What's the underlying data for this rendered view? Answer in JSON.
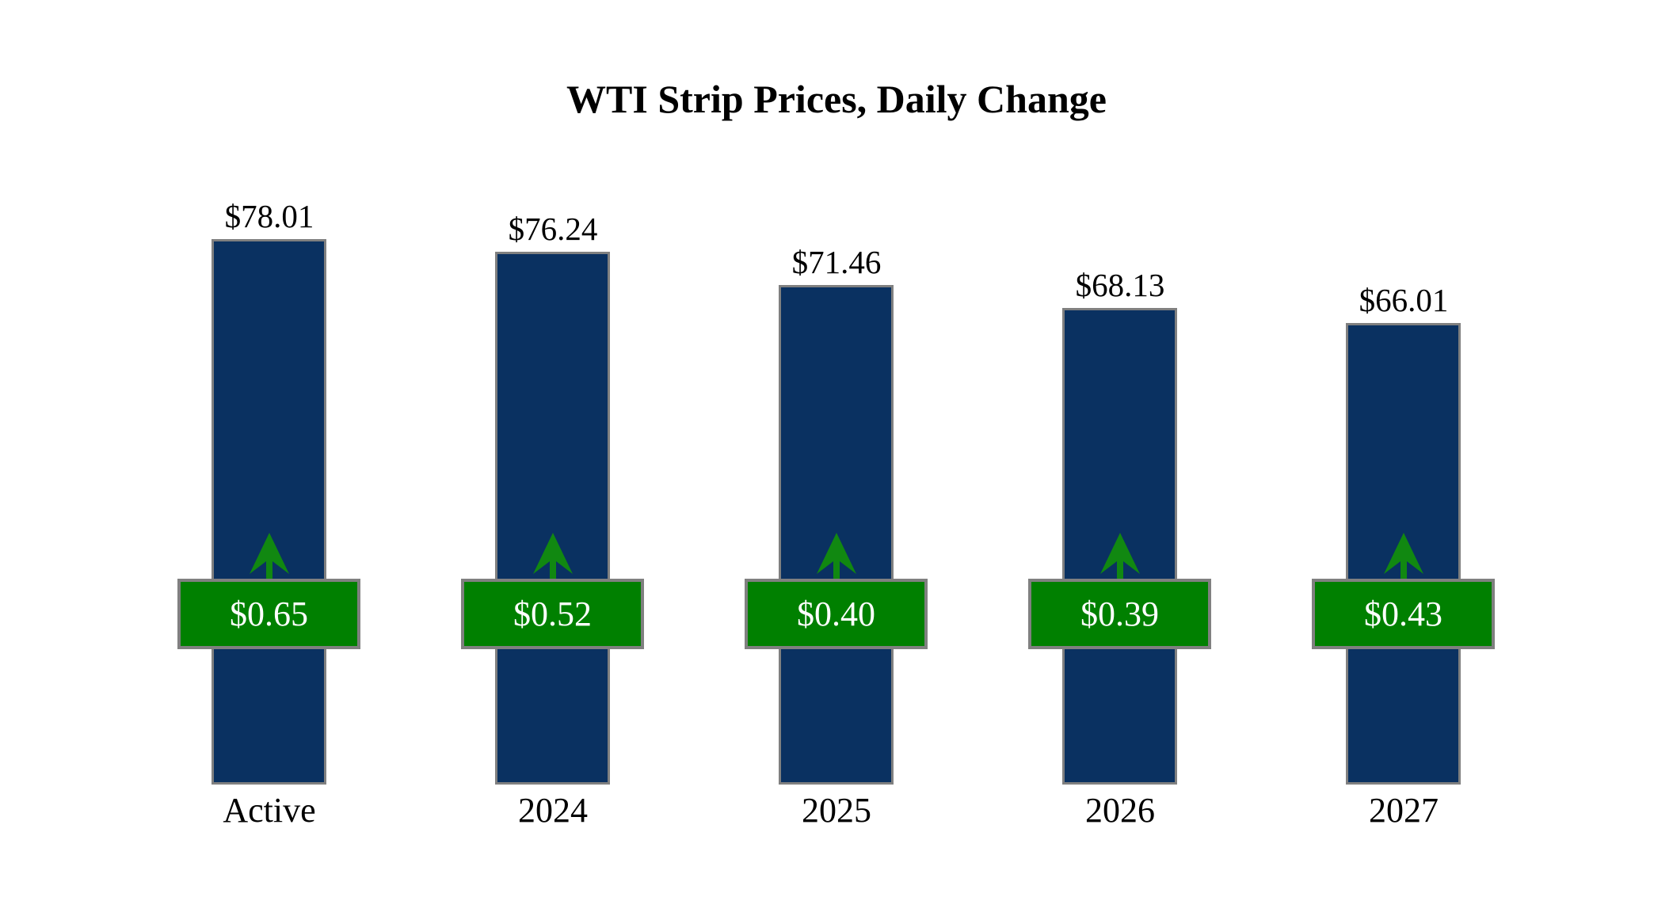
{
  "title": "WTI Strip Prices, Daily Change",
  "colors": {
    "background": "#FFFFFF",
    "bar_fill": "#0A3161",
    "bar_border": "#808080",
    "badge_fill": "#008000",
    "badge_border": "#808080",
    "badge_text": "#FFFFFF",
    "arrow_green": "#118811",
    "text": "#000000"
  },
  "chart_data": {
    "type": "bar",
    "title": "WTI Strip Prices, Daily Change",
    "categories": [
      "Active",
      "2024",
      "2025",
      "2026",
      "2027"
    ],
    "series": [
      {
        "name": "Strip Price",
        "values": [
          78.01,
          76.24,
          71.46,
          68.13,
          66.01
        ],
        "labels": [
          "$78.01",
          "$76.24",
          "$71.46",
          "$68.13",
          "$66.01"
        ]
      },
      {
        "name": "Daily Change",
        "direction": "up",
        "values": [
          0.65,
          0.52,
          0.4,
          0.39,
          0.43
        ],
        "labels": [
          "$0.65",
          "$0.52",
          "$0.40",
          "$0.39",
          "$0.43"
        ]
      }
    ],
    "xlabel": "",
    "ylabel": "",
    "ylim": [
      0,
      78.01
    ],
    "grid": false,
    "axes_visible": false,
    "legend_position": "none",
    "annotations": "green badge with up arrow shows daily change per contract year"
  }
}
